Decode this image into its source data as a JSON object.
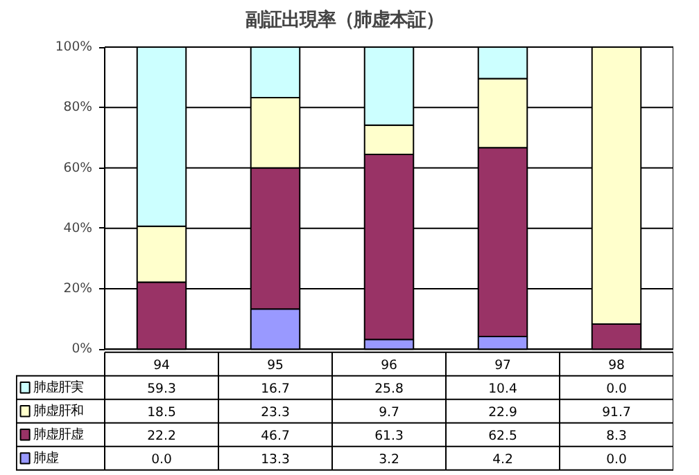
{
  "chart_data": {
    "type": "bar",
    "title": "副証出現率（肺虚本証）",
    "stacked": true,
    "categories": [
      "94",
      "95",
      "96",
      "97",
      "98"
    ],
    "series": [
      {
        "name": "肺虚",
        "color": "#9999ff",
        "values": [
          0.0,
          13.3,
          3.2,
          4.2,
          0.0
        ],
        "value_labels": [
          "0.0",
          "13.3",
          "3.2",
          "4.2",
          "0.0"
        ]
      },
      {
        "name": "肺虚肝虚",
        "color": "#993366",
        "values": [
          22.2,
          46.7,
          61.3,
          62.5,
          8.3
        ],
        "value_labels": [
          "22.2",
          "46.7",
          "61.3",
          "62.5",
          "8.3"
        ]
      },
      {
        "name": "肺虚肝和",
        "color": "#ffffcc",
        "values": [
          18.5,
          23.3,
          9.7,
          22.9,
          91.7
        ],
        "value_labels": [
          "18.5",
          "23.3",
          "9.7",
          "22.9",
          "91.7"
        ]
      },
      {
        "name": "肺虚肝実",
        "color": "#ccffff",
        "values": [
          59.3,
          16.7,
          25.8,
          10.4,
          0.0
        ],
        "value_labels": [
          "59.3",
          "16.7",
          "25.8",
          "10.4",
          "0.0"
        ]
      }
    ],
    "ylim": [
      0,
      100
    ],
    "yticks": [
      {
        "value": 0,
        "label": "0%"
      },
      {
        "value": 20,
        "label": "20%"
      },
      {
        "value": 40,
        "label": "40%"
      },
      {
        "value": 60,
        "label": "60%"
      },
      {
        "value": 80,
        "label": "80%"
      },
      {
        "value": 100,
        "label": "100%"
      }
    ],
    "grid": "y",
    "legend": "bottom"
  }
}
